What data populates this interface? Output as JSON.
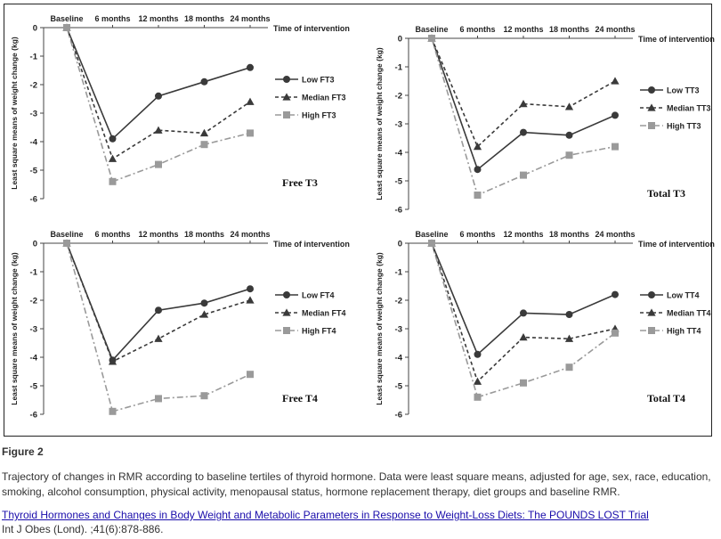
{
  "chart_data": [
    {
      "type": "line",
      "panel_title": "Free T3",
      "top_axis_label": "Time of intervention",
      "ylabel": "Least square means of weight change (kg)",
      "categories": [
        "Baseline",
        "6 months",
        "12 months",
        "18 months",
        "24 months"
      ],
      "yticks": [
        "0",
        "-1",
        "-2",
        "-3",
        "-4",
        "-5",
        "-6"
      ],
      "ylim": [
        -6,
        0
      ],
      "series": [
        {
          "name": "Low FT3",
          "values": [
            0,
            -3.9,
            -2.4,
            -1.9,
            -1.4
          ],
          "style": "solid",
          "marker": "circle",
          "color": "#3a3a3a"
        },
        {
          "name": "Median FT3",
          "values": [
            0,
            -4.6,
            -3.6,
            -3.7,
            -2.6
          ],
          "style": "dashed",
          "marker": "triangle",
          "color": "#3a3a3a"
        },
        {
          "name": "High FT3",
          "values": [
            0,
            -5.4,
            -4.8,
            -4.1,
            -3.7
          ],
          "style": "dashdot",
          "marker": "square",
          "color": "#9a9a9a"
        }
      ]
    },
    {
      "type": "line",
      "panel_title": "Total T3",
      "top_axis_label": "Time of intervention",
      "ylabel": "Least square means of weight change (kg)",
      "categories": [
        "Baseline",
        "6 months",
        "12 months",
        "18 months",
        "24 months"
      ],
      "yticks": [
        "0",
        "-1",
        "-2",
        "-3",
        "-4",
        "-5",
        "-6"
      ],
      "ylim": [
        -6,
        0
      ],
      "series": [
        {
          "name": "Low TT3",
          "values": [
            0,
            -4.6,
            -3.3,
            -3.4,
            -2.7
          ],
          "style": "solid",
          "marker": "circle",
          "color": "#3a3a3a"
        },
        {
          "name": "Median TT3",
          "values": [
            0,
            -3.8,
            -2.3,
            -2.4,
            -1.5
          ],
          "style": "dashed",
          "marker": "triangle",
          "color": "#3a3a3a"
        },
        {
          "name": "High TT3",
          "values": [
            0,
            -5.5,
            -4.8,
            -4.1,
            -3.8
          ],
          "style": "dashdot",
          "marker": "square",
          "color": "#9a9a9a"
        }
      ]
    },
    {
      "type": "line",
      "panel_title": "Free T4",
      "top_axis_label": "Time of intervention",
      "ylabel": "Least square means of weight change (kg)",
      "categories": [
        "Baseline",
        "6 months",
        "12 months",
        "18 months",
        "24 months"
      ],
      "yticks": [
        "0",
        "-1",
        "-2",
        "-3",
        "-4",
        "-5",
        "-6"
      ],
      "ylim": [
        -6,
        0
      ],
      "series": [
        {
          "name": "Low FT4",
          "values": [
            0,
            -4.1,
            -2.35,
            -2.1,
            -1.6
          ],
          "style": "solid",
          "marker": "circle",
          "color": "#3a3a3a"
        },
        {
          "name": "Median FT4",
          "values": [
            0,
            -4.15,
            -3.35,
            -2.5,
            -2.0
          ],
          "style": "dashed",
          "marker": "triangle",
          "color": "#3a3a3a"
        },
        {
          "name": "High FT4",
          "values": [
            0,
            -5.9,
            -5.45,
            -5.35,
            -4.6
          ],
          "style": "dashdot",
          "marker": "square",
          "color": "#9a9a9a"
        }
      ]
    },
    {
      "type": "line",
      "panel_title": "Total T4",
      "top_axis_label": "Time of intervention",
      "ylabel": "Least square means of weight change (kg)",
      "categories": [
        "Baseline",
        "6 months",
        "12 months",
        "18 months",
        "24 months"
      ],
      "yticks": [
        "0",
        "-1",
        "-2",
        "-3",
        "-4",
        "-5",
        "-6"
      ],
      "ylim": [
        -6,
        0
      ],
      "series": [
        {
          "name": "Low TT4",
          "values": [
            0,
            -3.9,
            -2.45,
            -2.5,
            -1.8
          ],
          "style": "solid",
          "marker": "circle",
          "color": "#3a3a3a"
        },
        {
          "name": "Median TT4",
          "values": [
            0,
            -4.85,
            -3.3,
            -3.35,
            -3.0
          ],
          "style": "dashed",
          "marker": "triangle",
          "color": "#3a3a3a"
        },
        {
          "name": "High TT4",
          "values": [
            0,
            -5.4,
            -4.9,
            -4.35,
            -3.15
          ],
          "style": "dashdot",
          "marker": "square",
          "color": "#9a9a9a"
        }
      ]
    }
  ],
  "figure_label": "Figure 2",
  "caption": "Trajectory of changes in RMR according to baseline tertiles of thyroid hormone. Data were least square means, adjusted for age, sex, race, education, smoking, alcohol consumption, physical activity, menopausal status, hormone replacement therapy, diet groups and baseline RMR.",
  "citation_title": "Thyroid Hormones and Changes in Body Weight and Metabolic Parameters in Response to Weight-Loss Diets: The POUNDS LOST Trial",
  "citation_journal": "Int J Obes (Lond). ;41(6):878-886."
}
